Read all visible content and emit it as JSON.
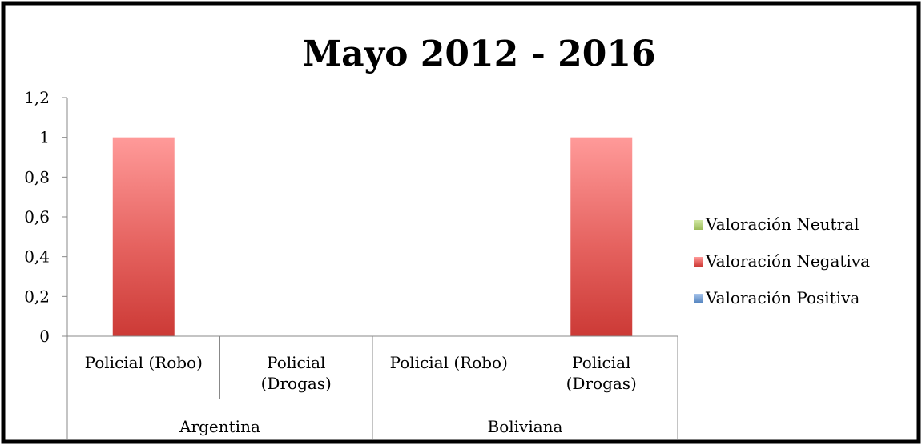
{
  "chart_data": {
    "type": "bar",
    "title": "Mayo 2012 - 2016",
    "xlabel": "",
    "ylabel": "",
    "ylim": [
      0,
      1.2
    ],
    "yticks": [
      "0",
      "0,2",
      "0,4",
      "0,6",
      "0,8",
      "1",
      "1,2"
    ],
    "yticks_values": [
      0,
      0.2,
      0.4,
      0.6,
      0.8,
      1.0,
      1.2
    ],
    "groups": [
      {
        "label": "Argentina",
        "categories": [
          "Policial (Robo)",
          "Policial (Drogas)"
        ]
      },
      {
        "label": "Boliviana",
        "categories": [
          "Policial (Robo)",
          "Policial (Drogas)"
        ]
      }
    ],
    "categories_lines": [
      [
        "Policial (Robo)"
      ],
      [
        "Policial",
        "(Drogas)"
      ],
      [
        "Policial (Robo)"
      ],
      [
        "Policial",
        "(Drogas)"
      ]
    ],
    "series": [
      {
        "name": "Valoración Neutral",
        "values": [
          0,
          0,
          0,
          0
        ],
        "color": "#9BBB59"
      },
      {
        "name": "Valoración Negativa",
        "values": [
          1,
          0,
          0,
          1
        ],
        "color": "#E06666"
      },
      {
        "name": "Valoración Positiva",
        "values": [
          0,
          0,
          0,
          0
        ],
        "color": "#4F81BD"
      }
    ],
    "stacked": true,
    "grid": false,
    "legend_position": "right"
  }
}
